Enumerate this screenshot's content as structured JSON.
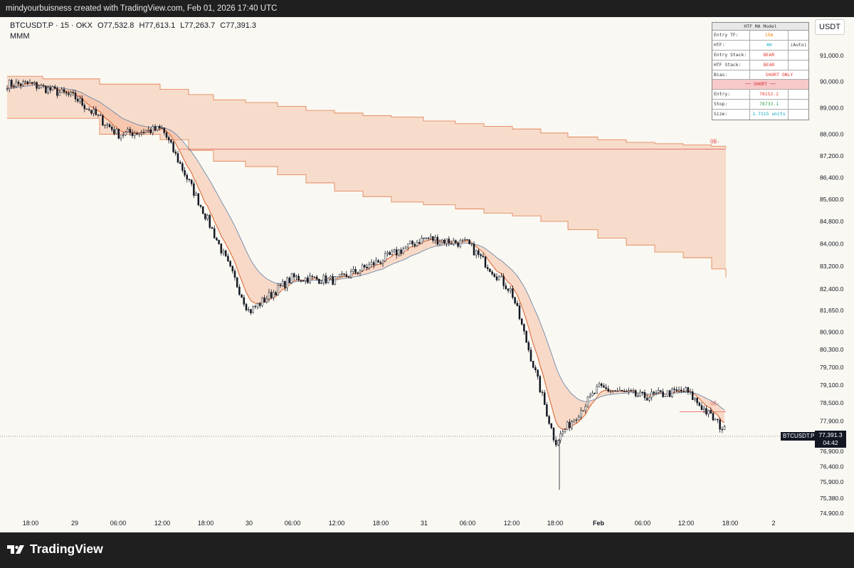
{
  "header": {
    "credit": "mindyourbuisness created with TradingView.com, Feb 01, 2026 17:40 UTC"
  },
  "legend": {
    "symbol": "BTCUSDT.P · 15 · OKX",
    "open": "O77,532.8",
    "high": "H77,613.1",
    "low": "L77,263.7",
    "close": "C77,391.3",
    "indicator": "MMM"
  },
  "currency": "USDT",
  "panel": {
    "title": "HTF MA Model",
    "rows": [
      {
        "label": "Entry TF:",
        "value": "15m",
        "color": "#f57c00"
      },
      {
        "label": "HTF:",
        "value": "4H",
        "extra": "(Auto)",
        "color": "#0aa5c8"
      },
      {
        "label": "Entry Stack:",
        "value": "BEAR",
        "color": "#e53935"
      },
      {
        "label": "HTF Stack:",
        "value": "BEAR",
        "color": "#e53935"
      },
      {
        "label": "Bias:",
        "value": "SHORT ONLY",
        "color": "#e53935"
      }
    ],
    "banner": "── SHORT ──",
    "rows2": [
      {
        "label": "Entry:",
        "value": "78152.2",
        "color": "#e53935"
      },
      {
        "label": "Stop:",
        "value": "78733.1",
        "color": "#2e9e48"
      },
      {
        "label": "Size:",
        "value": "1.7215 units",
        "color": "#0aa5c8"
      }
    ]
  },
  "last_price": {
    "symbol": "BTCUSDT.P",
    "price": "77,391.3",
    "countdown": "04:42"
  },
  "footer": {
    "brand": "TradingView"
  },
  "chart_data": {
    "type": "candlestick",
    "symbol": "BTCUSDT.P",
    "interval": "15",
    "exchange": "OKX",
    "x_ticks": [
      "18:00",
      "29",
      "06:00",
      "12:00",
      "18:00",
      "30",
      "06:00",
      "12:00",
      "18:00",
      "31",
      "06:00",
      "12:00",
      "18:00",
      "Feb",
      "06:00",
      "12:00",
      "18:00",
      "2"
    ],
    "y_ticks": [
      "91,000.0",
      "90,000.0",
      "89,000.0",
      "88,000.0",
      "87,200.0",
      "86,400.0",
      "85,600.0",
      "84,800.0",
      "84,000.0",
      "83,200.0",
      "82,400.0",
      "81,650.0",
      "80,900.0",
      "80,300.0",
      "79,700.0",
      "79,100.0",
      "78,500.0",
      "77,900.0",
      "76,900.0",
      "76,400.0",
      "75,900.0",
      "75,380.0",
      "74,900.0"
    ],
    "y_scale": "log",
    "price_path": [
      [
        "18:00",
        89900
      ],
      [
        "29",
        89400
      ],
      [
        "06:00",
        88000
      ],
      [
        "12:00",
        88200
      ],
      [
        "18:00",
        85000
      ],
      [
        "30",
        81600
      ],
      [
        "06:00",
        82800
      ],
      [
        "12:00",
        82700
      ],
      [
        "18:00",
        83400
      ],
      [
        "31",
        84200
      ],
      [
        "06:00",
        84000
      ],
      [
        "12:00",
        82300
      ],
      [
        "18:00",
        77200
      ],
      [
        "Feb",
        79000
      ],
      [
        "06:00",
        78700
      ],
      [
        "12:00",
        78900
      ],
      [
        "18:00",
        77391.3
      ]
    ],
    "series": [
      {
        "name": "BTCUSDT.P",
        "color": "#131722"
      }
    ],
    "bands_color": "#f4a178",
    "ob_labels": [
      "OB-",
      "OB-"
    ],
    "last": 77391.3
  }
}
